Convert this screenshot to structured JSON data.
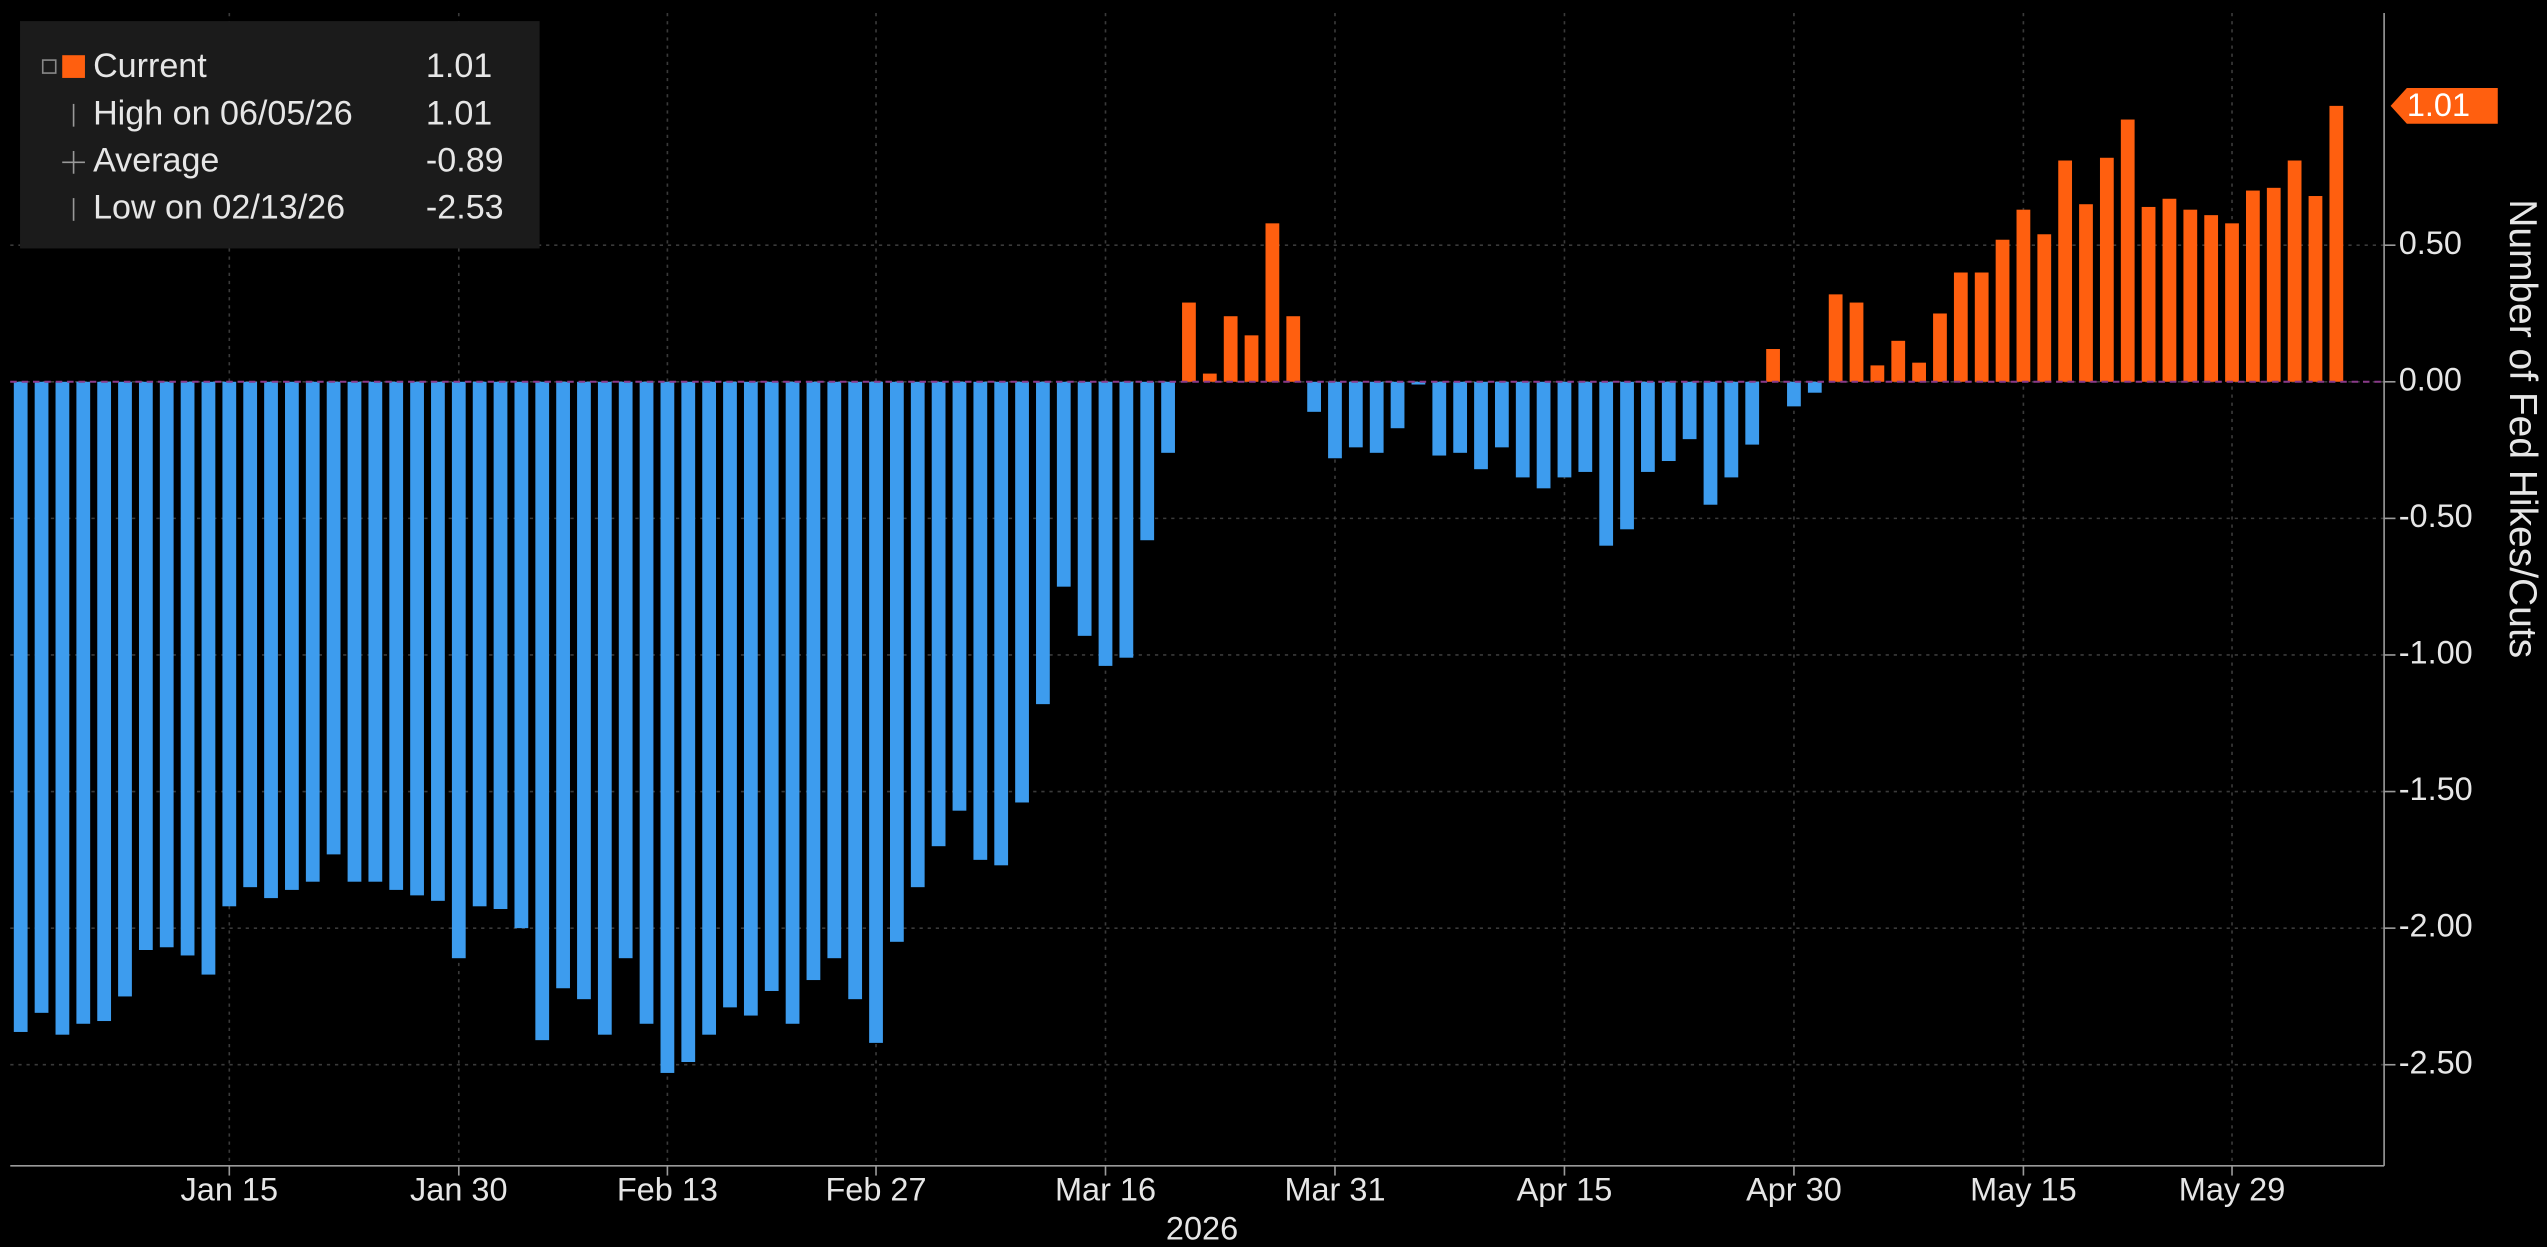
{
  "chart_data": {
    "type": "bar",
    "ylabel": "Number of Fed Hikes/Cuts",
    "xlabel": "2026",
    "categories": [
      null,
      null,
      null,
      null,
      null,
      null,
      null,
      null,
      null,
      null,
      "Jan 15",
      null,
      null,
      null,
      null,
      null,
      null,
      null,
      null,
      null,
      null,
      "Jan 30",
      null,
      null,
      null,
      null,
      null,
      null,
      null,
      null,
      null,
      "Feb 13",
      null,
      null,
      null,
      null,
      null,
      null,
      null,
      null,
      null,
      "Feb 27",
      null,
      null,
      null,
      null,
      null,
      null,
      null,
      null,
      null,
      null,
      "Mar 16",
      null,
      null,
      null,
      null,
      null,
      null,
      null,
      null,
      null,
      null,
      "Mar 31",
      null,
      null,
      null,
      null,
      null,
      null,
      null,
      null,
      null,
      null,
      "Apr 15",
      null,
      null,
      null,
      null,
      null,
      null,
      null,
      null,
      null,
      null,
      "Apr 30",
      null,
      null,
      null,
      null,
      null,
      null,
      null,
      null,
      null,
      null,
      "May 15",
      null,
      null,
      null,
      null,
      null,
      null,
      null,
      null,
      null,
      "May 29",
      null,
      null,
      null,
      null,
      null
    ],
    "values": [
      -2.38,
      -2.31,
      -2.39,
      -2.35,
      -2.34,
      -2.25,
      -2.08,
      -2.07,
      -2.1,
      -2.17,
      -1.92,
      -1.85,
      -1.89,
      -1.86,
      -1.83,
      -1.73,
      -1.83,
      -1.83,
      -1.86,
      -1.88,
      -1.9,
      -2.11,
      -1.92,
      -1.93,
      -2.0,
      -2.41,
      -2.22,
      -2.26,
      -2.39,
      -2.11,
      -2.35,
      -2.53,
      -2.49,
      -2.39,
      -2.29,
      -2.32,
      -2.23,
      -2.35,
      -2.19,
      -2.11,
      -2.26,
      -2.42,
      -2.05,
      -1.85,
      -1.7,
      -1.57,
      -1.75,
      -1.77,
      -1.54,
      -1.18,
      -0.75,
      -0.93,
      -1.04,
      -1.01,
      -0.58,
      -0.26,
      0.29,
      0.03,
      0.24,
      0.17,
      0.58,
      0.24,
      -0.11,
      -0.28,
      -0.24,
      -0.26,
      -0.17,
      -0.01,
      -0.27,
      -0.26,
      -0.32,
      -0.24,
      -0.35,
      -0.39,
      -0.35,
      -0.33,
      -0.6,
      -0.54,
      -0.33,
      -0.29,
      -0.21,
      -0.45,
      -0.35,
      -0.23,
      0.12,
      -0.09,
      -0.04,
      0.32,
      0.29,
      0.06,
      0.15,
      0.07,
      0.25,
      0.4,
      0.4,
      0.52,
      0.63,
      0.54,
      0.81,
      0.65,
      0.82,
      0.96,
      0.64,
      0.67,
      0.63,
      0.61,
      0.58,
      0.7,
      0.71,
      0.81,
      0.68,
      1.01
    ],
    "colors": {
      "positive": "#ff5f0f",
      "negative": "#3d9cee"
    },
    "ylim": [
      -2.87,
      1.35
    ],
    "yticks": [
      {
        "value": 0.5,
        "label": "0.50"
      },
      {
        "value": 0,
        "label": "0.00"
      },
      {
        "value": -0.5,
        "label": "-0.50"
      },
      {
        "value": -1,
        "label": "-1.00"
      },
      {
        "value": -1.5,
        "label": "-1.50"
      },
      {
        "value": -2,
        "label": "-2.00"
      },
      {
        "value": -2.5,
        "label": "-2.50"
      }
    ],
    "grid": true,
    "legend": [
      {
        "label": "Current",
        "value": 1.01
      },
      {
        "label": "High on 06/05/26",
        "value": 1.01
      },
      {
        "label": "Average",
        "value": -0.89
      },
      {
        "label": "Low on 02/13/26",
        "value": -2.53
      }
    ]
  }
}
